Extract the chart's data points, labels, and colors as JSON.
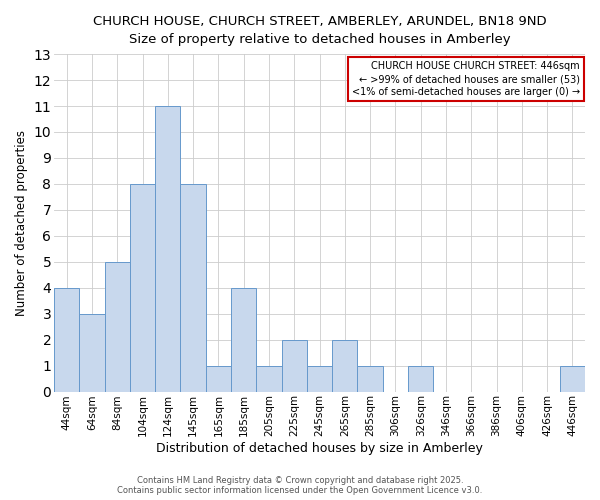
{
  "title1": "CHURCH HOUSE, CHURCH STREET, AMBERLEY, ARUNDEL, BN18 9ND",
  "title2": "Size of property relative to detached houses in Amberley",
  "xlabel": "Distribution of detached houses by size in Amberley",
  "ylabel": "Number of detached properties",
  "categories": [
    "44sqm",
    "64sqm",
    "84sqm",
    "104sqm",
    "124sqm",
    "145sqm",
    "165sqm",
    "185sqm",
    "205sqm",
    "225sqm",
    "245sqm",
    "265sqm",
    "285sqm",
    "306sqm",
    "326sqm",
    "346sqm",
    "366sqm",
    "386sqm",
    "406sqm",
    "426sqm",
    "446sqm"
  ],
  "values": [
    4,
    3,
    5,
    8,
    11,
    8,
    1,
    4,
    1,
    2,
    1,
    2,
    1,
    0,
    1,
    0,
    0,
    0,
    0,
    0,
    1
  ],
  "bar_color": "#c8d8ed",
  "bar_edge_color": "#6699cc",
  "annotation_box_edge_color": "#cc0000",
  "annotation_lines": [
    "CHURCH HOUSE CHURCH STREET: 446sqm",
    "← >99% of detached houses are smaller (53)",
    "<1% of semi-detached houses are larger (0) →"
  ],
  "ylim": [
    0,
    13
  ],
  "yticks": [
    0,
    1,
    2,
    3,
    4,
    5,
    6,
    7,
    8,
    9,
    10,
    11,
    12,
    13
  ],
  "footer_line1": "Contains HM Land Registry data © Crown copyright and database right 2025.",
  "footer_line2": "Contains public sector information licensed under the Open Government Licence v3.0.",
  "background_color": "#ffffff",
  "grid_color": "#cccccc",
  "title1_fontsize": 9.5,
  "title2_fontsize": 8.5,
  "xlabel_fontsize": 9,
  "ylabel_fontsize": 8.5,
  "tick_fontsize": 7.5,
  "annotation_fontsize": 7,
  "footer_fontsize": 6
}
